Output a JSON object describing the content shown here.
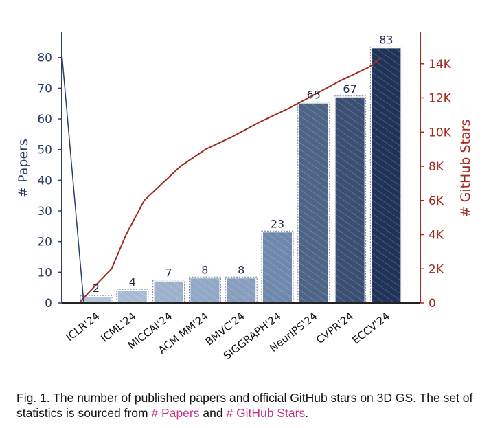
{
  "chart_data": {
    "type": "bar",
    "categories": [
      "ICLR'24",
      "ICML'24",
      "MICCAI'24",
      "ACM MM'24",
      "BMVC'24",
      "SIGGRAPH'24",
      "NeurIPS'24",
      "CVPR'24",
      "ECCV'24"
    ],
    "series": [
      {
        "values": [
          2,
          4,
          7,
          8,
          8,
          23,
          65,
          67,
          83
        ],
        "axis": "left",
        "kind": "bar"
      },
      {
        "axis": "right",
        "kind": "line",
        "x": [
          0,
          0.4,
          0.9,
          1.3,
          1.8,
          2.3,
          2.8,
          3.5,
          4.2,
          5.0,
          5.8,
          6.5,
          7.2,
          8.0,
          8.3
        ],
        "values": [
          0,
          900,
          2000,
          4000,
          6000,
          7000,
          8000,
          9000,
          9700,
          10600,
          11400,
          12200,
          13000,
          13800,
          14300
        ]
      }
    ],
    "ylabel": "# Papers",
    "y2label": "# GitHub Stars",
    "ylim": [
      0,
      88
    ],
    "y2lim": [
      0,
      15800
    ],
    "yticks": [
      0,
      10,
      20,
      30,
      40,
      50,
      60,
      70,
      80
    ],
    "y2ticks": [
      {
        "value": 0,
        "label": "0"
      },
      {
        "value": 2000,
        "label": "2K"
      },
      {
        "value": 4000,
        "label": "4K"
      },
      {
        "value": 6000,
        "label": "6K"
      },
      {
        "value": 8000,
        "label": "8K"
      },
      {
        "value": 10000,
        "label": "10K"
      },
      {
        "value": 12000,
        "label": "12K"
      },
      {
        "value": 14000,
        "label": "14K"
      }
    ],
    "grid": false,
    "colors": {
      "bars": [
        "#b3c4db",
        "#a8bbd4",
        "#9db1cd",
        "#91a7c6",
        "#879ebe",
        "#6f89ad",
        "#4d6487",
        "#3a4f72",
        "#1f3458"
      ],
      "left_axis": "#2c3e66",
      "right_axis": "#a42a1e",
      "line": "#a42a1e"
    }
  },
  "caption": {
    "text": "Fig. 1.  The number of published papers and official GitHub stars on 3D GS. The set of statistics is sourced from ",
    "link1": "# Papers",
    "mid": " and ",
    "link2": "# GitHub Stars",
    "end": ".",
    "link_color": "#c4358a"
  }
}
